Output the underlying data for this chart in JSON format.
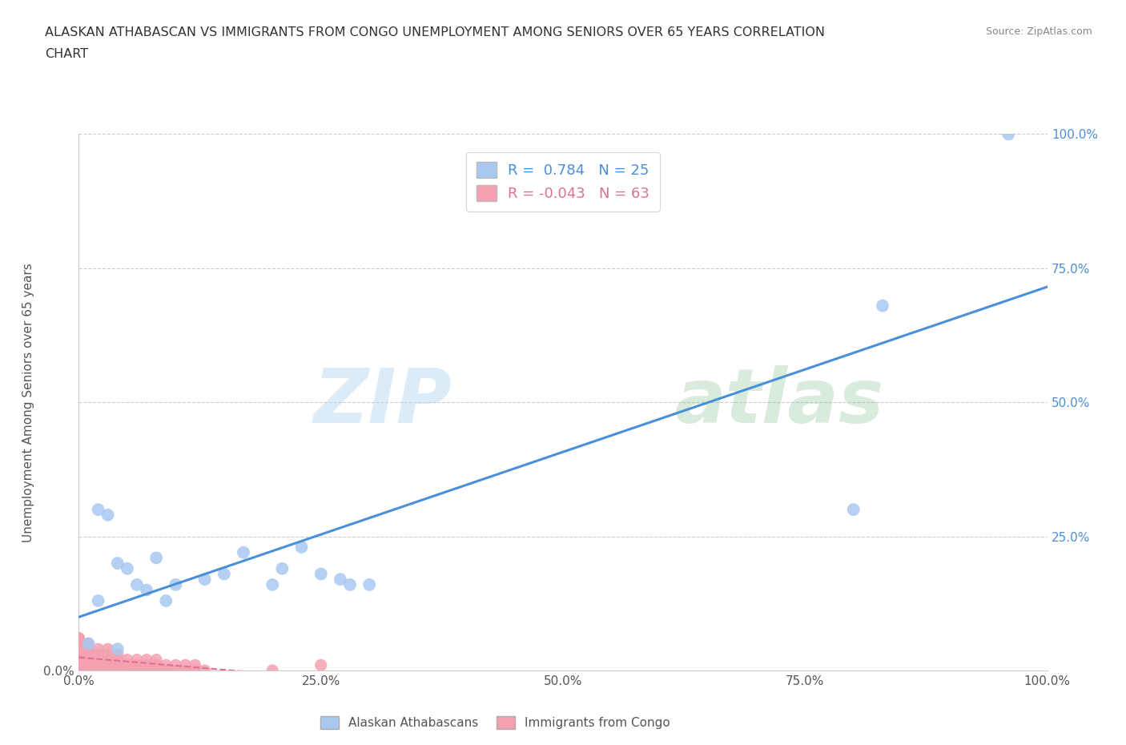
{
  "title_line1": "ALASKAN ATHABASCAN VS IMMIGRANTS FROM CONGO UNEMPLOYMENT AMONG SENIORS OVER 65 YEARS CORRELATION",
  "title_line2": "CHART",
  "source": "Source: ZipAtlas.com",
  "ylabel": "Unemployment Among Seniors over 65 years",
  "r_blue": 0.784,
  "n_blue": 25,
  "r_pink": -0.043,
  "n_pink": 63,
  "blue_color": "#a8c8f0",
  "blue_line_color": "#4a90d9",
  "pink_color": "#f4a0b0",
  "pink_line_color": "#e07090",
  "background_color": "#ffffff",
  "grid_color": "#cccccc",
  "watermark_zip": "ZIP",
  "watermark_atlas": "atlas",
  "blue_scatter_x": [
    0.01,
    0.02,
    0.02,
    0.03,
    0.04,
    0.04,
    0.05,
    0.06,
    0.07,
    0.08,
    0.09,
    0.1,
    0.13,
    0.15,
    0.17,
    0.2,
    0.21,
    0.23,
    0.25,
    0.27,
    0.28,
    0.3,
    0.8,
    0.83,
    0.96
  ],
  "blue_scatter_y": [
    0.05,
    0.3,
    0.13,
    0.29,
    0.2,
    0.04,
    0.19,
    0.16,
    0.15,
    0.21,
    0.13,
    0.16,
    0.17,
    0.18,
    0.22,
    0.16,
    0.19,
    0.23,
    0.18,
    0.17,
    0.16,
    0.16,
    0.3,
    0.68,
    1.0
  ],
  "pink_scatter_x": [
    0.0,
    0.0,
    0.0,
    0.0,
    0.0,
    0.0,
    0.0,
    0.0,
    0.0,
    0.0,
    0.0,
    0.0,
    0.0,
    0.0,
    0.0,
    0.01,
    0.01,
    0.01,
    0.01,
    0.01,
    0.01,
    0.01,
    0.01,
    0.01,
    0.01,
    0.02,
    0.02,
    0.02,
    0.02,
    0.02,
    0.03,
    0.03,
    0.03,
    0.03,
    0.03,
    0.04,
    0.04,
    0.04,
    0.04,
    0.04,
    0.05,
    0.05,
    0.05,
    0.06,
    0.06,
    0.06,
    0.07,
    0.07,
    0.07,
    0.08,
    0.08,
    0.08,
    0.09,
    0.09,
    0.1,
    0.1,
    0.11,
    0.11,
    0.12,
    0.12,
    0.13,
    0.2,
    0.25
  ],
  "pink_scatter_y": [
    0.0,
    0.0,
    0.01,
    0.01,
    0.01,
    0.02,
    0.02,
    0.03,
    0.03,
    0.04,
    0.04,
    0.05,
    0.05,
    0.06,
    0.06,
    0.0,
    0.01,
    0.01,
    0.02,
    0.02,
    0.03,
    0.03,
    0.04,
    0.04,
    0.05,
    0.0,
    0.01,
    0.02,
    0.03,
    0.04,
    0.0,
    0.01,
    0.02,
    0.03,
    0.04,
    0.0,
    0.01,
    0.01,
    0.02,
    0.03,
    0.0,
    0.01,
    0.02,
    0.0,
    0.01,
    0.02,
    0.0,
    0.01,
    0.02,
    0.0,
    0.01,
    0.02,
    0.0,
    0.01,
    0.0,
    0.01,
    0.0,
    0.01,
    0.0,
    0.01,
    0.0,
    0.0,
    0.01
  ],
  "xlim": [
    0.0,
    1.0
  ],
  "ylim": [
    0.0,
    1.0
  ],
  "xtick_vals": [
    0.0,
    0.25,
    0.5,
    0.75,
    1.0
  ],
  "xtick_labels": [
    "0.0%",
    "25.0%",
    "50.0%",
    "75.0%",
    "100.0%"
  ],
  "ytick_vals": [
    0.0,
    0.25,
    0.5,
    0.75,
    1.0
  ],
  "right_ytick_labels": [
    "",
    "25.0%",
    "50.0%",
    "75.0%",
    "100.0%"
  ],
  "legend_r_blue_text": "R =  0.784   N = 25",
  "legend_r_pink_text": "R = -0.043   N = 63",
  "bottom_legend_blue": "Alaskan Athabascans",
  "bottom_legend_pink": "Immigrants from Congo"
}
